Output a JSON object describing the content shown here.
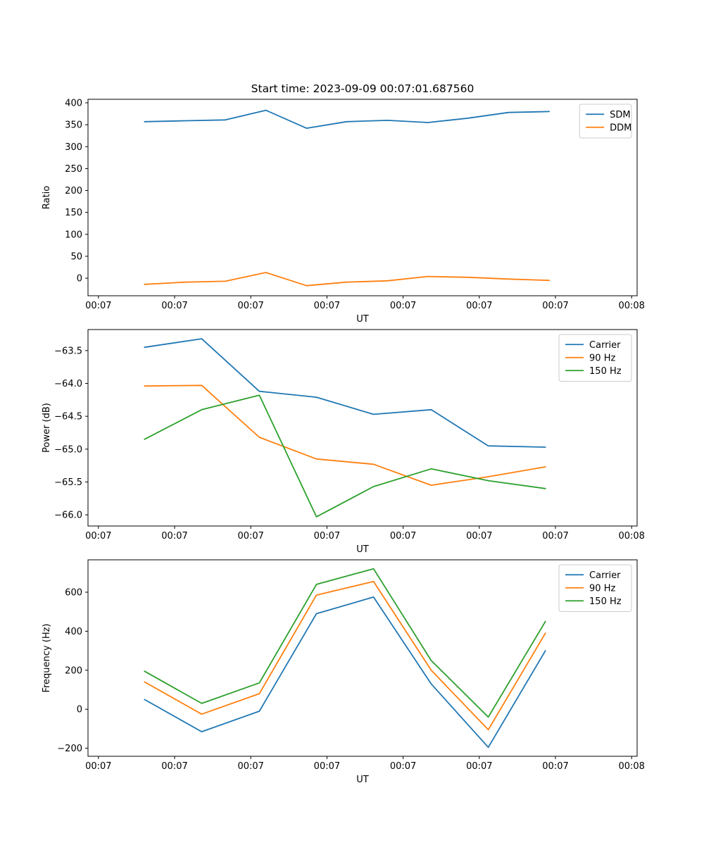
{
  "figure": {
    "background": "#ffffff",
    "title": "Start time: 2023-09-09 00:07:01.687560"
  },
  "colors": {
    "blue": "#1f77b4",
    "orange": "#ff7f0e",
    "green": "#2ca02c",
    "axis": "#000000",
    "legend_border": "#cccccc"
  },
  "chart_data": [
    {
      "id": "ratio",
      "type": "line",
      "title": "Start time: 2023-09-09 00:07:01.687560",
      "xlabel": "UT",
      "ylabel": "Ratio",
      "ylim": [
        -40,
        408
      ],
      "yticks": [
        0,
        50,
        100,
        150,
        200,
        250,
        300,
        350,
        400
      ],
      "yticklabels": [
        "0",
        "50",
        "100",
        "150",
        "200",
        "250",
        "300",
        "350",
        "400"
      ],
      "xticklabels": [
        "00:07",
        "00:07",
        "00:07",
        "00:07",
        "00:07",
        "00:07",
        "00:07",
        "00:08"
      ],
      "grid": false,
      "legend_position": "top-right",
      "x": [
        0.103,
        0.177,
        0.25,
        0.324,
        0.398,
        0.471,
        0.545,
        0.619,
        0.692,
        0.766,
        0.84
      ],
      "series": [
        {
          "name": "SDM",
          "color": "#1f77b4",
          "values": [
            357,
            359,
            361,
            383,
            342,
            357,
            360,
            355,
            365,
            378,
            380
          ]
        },
        {
          "name": "DDM",
          "color": "#ff7f0e",
          "values": [
            -14,
            -9,
            -7,
            13,
            -17,
            -9,
            -6,
            4,
            2,
            -2,
            -5
          ]
        }
      ]
    },
    {
      "id": "power",
      "type": "line",
      "title": "",
      "xlabel": "UT",
      "ylabel": "Power (dB)",
      "ylim": [
        -66.17,
        -63.18
      ],
      "yticks": [
        -63.5,
        -64.0,
        -64.5,
        -65.0,
        -65.5,
        -66.0
      ],
      "yticklabels": [
        "−63.5",
        "−64.0",
        "−64.5",
        "−65.0",
        "−65.5",
        "−66.0"
      ],
      "xticklabels": [
        "00:07",
        "00:07",
        "00:07",
        "00:07",
        "00:07",
        "00:07",
        "00:07",
        "00:08"
      ],
      "grid": false,
      "legend_position": "top-right",
      "x": [
        0.103,
        0.207,
        0.312,
        0.416,
        0.52,
        0.625,
        0.729,
        0.833
      ],
      "series": [
        {
          "name": "Carrier",
          "color": "#1f77b4",
          "values": [
            -63.45,
            -63.32,
            -64.12,
            -64.21,
            -64.47,
            -64.4,
            -64.95,
            -64.97
          ]
        },
        {
          "name": "90 Hz",
          "color": "#ff7f0e",
          "values": [
            -64.04,
            -64.03,
            -64.82,
            -65.15,
            -65.23,
            -65.55,
            -65.42,
            -65.27
          ]
        },
        {
          "name": "150 Hz",
          "color": "#2ca02c",
          "values": [
            -64.85,
            -64.4,
            -64.18,
            -66.03,
            -65.57,
            -65.3,
            -65.48,
            -65.6
          ]
        }
      ]
    },
    {
      "id": "frequency",
      "type": "line",
      "title": "",
      "xlabel": "UT",
      "ylabel": "Frequency (Hz)",
      "ylim": [
        -241,
        766
      ],
      "yticks": [
        -200,
        0,
        200,
        400,
        600
      ],
      "yticklabels": [
        "−200",
        "0",
        "200",
        "400",
        "600"
      ],
      "xticklabels": [
        "00:07",
        "00:07",
        "00:07",
        "00:07",
        "00:07",
        "00:07",
        "00:07",
        "00:08"
      ],
      "grid": false,
      "legend_position": "top-right",
      "x": [
        0.103,
        0.207,
        0.312,
        0.416,
        0.52,
        0.625,
        0.729,
        0.833
      ],
      "series": [
        {
          "name": "Carrier",
          "color": "#1f77b4",
          "values": [
            50,
            -115,
            -10,
            490,
            575,
            130,
            -195,
            300
          ]
        },
        {
          "name": "90 Hz",
          "color": "#ff7f0e",
          "values": [
            140,
            -25,
            80,
            585,
            655,
            200,
            -105,
            390
          ]
        },
        {
          "name": "150 Hz",
          "color": "#2ca02c",
          "values": [
            195,
            30,
            135,
            640,
            720,
            250,
            -40,
            450
          ]
        }
      ]
    }
  ]
}
